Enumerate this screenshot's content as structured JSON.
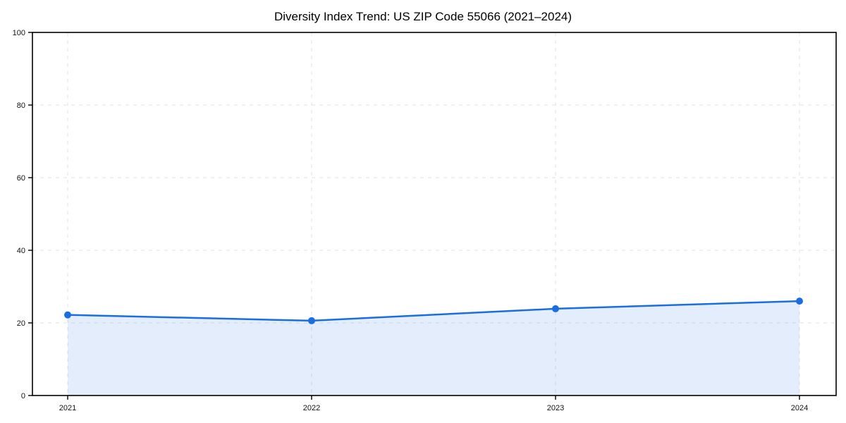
{
  "title": "Diversity Index Trend: US ZIP Code 55066 (2021–2024)",
  "chart_data": {
    "type": "area",
    "title": "Diversity Index Trend: US ZIP Code 55066 (2021–2024)",
    "categories": [
      "2021",
      "2022",
      "2023",
      "2024"
    ],
    "values": [
      22.2,
      20.6,
      23.9,
      26.0
    ],
    "series_name": "Diversity Index",
    "xlabel": "",
    "ylabel": "",
    "ylim": [
      0,
      100
    ],
    "yticks": [
      0,
      20,
      40,
      60,
      80,
      100
    ],
    "grid": "on",
    "grid_style": "dashed",
    "legend_position": "none",
    "colors": {
      "line": "#1a6fe0",
      "marker": "#1a6fe0",
      "fill": "rgba(26, 111, 224, 0.12)",
      "grid": "#e2e2e2",
      "spine": "#000000",
      "tick_text": "#111111",
      "background": "#ffffff"
    }
  }
}
